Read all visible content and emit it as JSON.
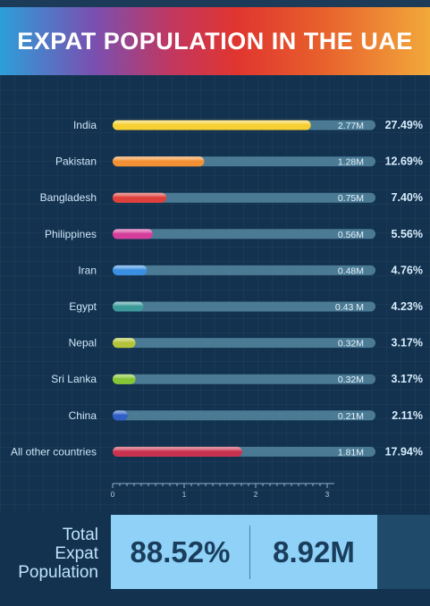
{
  "title": "EXPAT POPULATION IN THE UAE",
  "chart_data": {
    "type": "bar",
    "orientation": "horizontal",
    "categories": [
      "India",
      "Pakistan",
      "Bangladesh",
      "Philippines",
      "Iran",
      "Egypt",
      "Nepal",
      "Sri Lanka",
      "China",
      "All other countries"
    ],
    "values": [
      2.77,
      1.28,
      0.75,
      0.56,
      0.48,
      0.43,
      0.32,
      0.32,
      0.21,
      1.81
    ],
    "value_labels": [
      "2.77M",
      "1.28M",
      "0.75M",
      "0.56M",
      "0.48M",
      "0.43 M",
      "0.32M",
      "0.32M",
      "0.21M",
      "1.81M"
    ],
    "percent_labels": [
      "27.49%",
      "12.69%",
      "7.40%",
      "5.56%",
      "4.76%",
      "4.23%",
      "3.17%",
      "3.17%",
      "2.11%",
      "17.94%"
    ],
    "colors": [
      "#f6d032",
      "#f39033",
      "#e0403c",
      "#d43f9c",
      "#3a8fe2",
      "#3c9b9a",
      "#b4c43a",
      "#86c636",
      "#2f5fc7",
      "#c9324f"
    ],
    "track_color": "#4a7a94",
    "xlim": [
      0,
      3.5
    ],
    "xticks": [
      "0",
      "1",
      "2",
      "3"
    ],
    "xlabel": "",
    "ylabel": ""
  },
  "total": {
    "label_lines": [
      "Total",
      "Expat",
      "Population"
    ],
    "percent": "88.52%",
    "count": "8.92M"
  }
}
